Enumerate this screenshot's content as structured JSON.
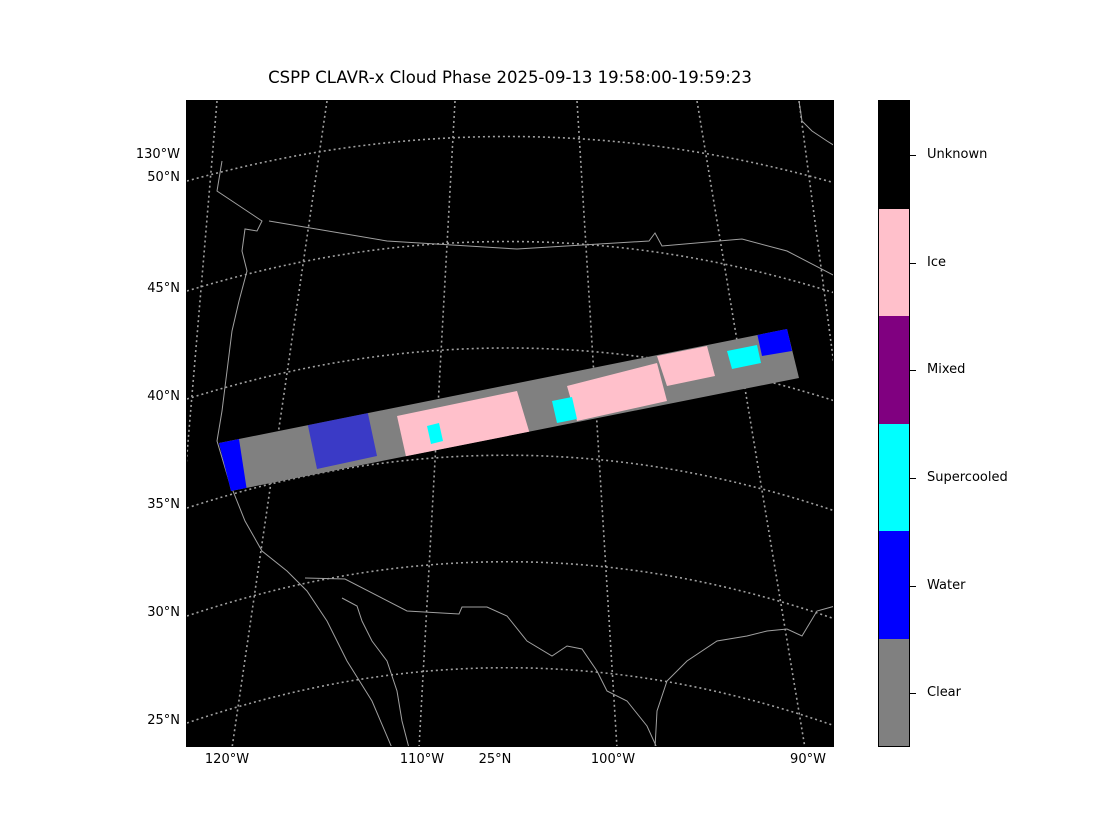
{
  "title": "CSPP CLAVR-x Cloud Phase 2025-09-13 19:58:00-19:59:23",
  "lat_labels": [
    "50°N",
    "45°N",
    "40°N",
    "35°N",
    "30°N",
    "25°N"
  ],
  "lon_labels_left": [
    "130°W"
  ],
  "lon_labels_bottom": [
    "120°W",
    "110°W",
    "25°N",
    "100°W",
    "90°W"
  ],
  "colorbar": {
    "classes": [
      {
        "name": "Unknown",
        "color": "#000000"
      },
      {
        "name": "Ice",
        "color": "#ffc0cb"
      },
      {
        "name": "Mixed",
        "color": "#800080"
      },
      {
        "name": "Supercooled",
        "color": "#00ffff"
      },
      {
        "name": "Water",
        "color": "#0000ff"
      },
      {
        "name": "Clear",
        "color": "#808080"
      }
    ]
  },
  "colors": {
    "background": "#000000",
    "gridline": "#a0a0a0",
    "coastline": "#a0a0a0"
  }
}
